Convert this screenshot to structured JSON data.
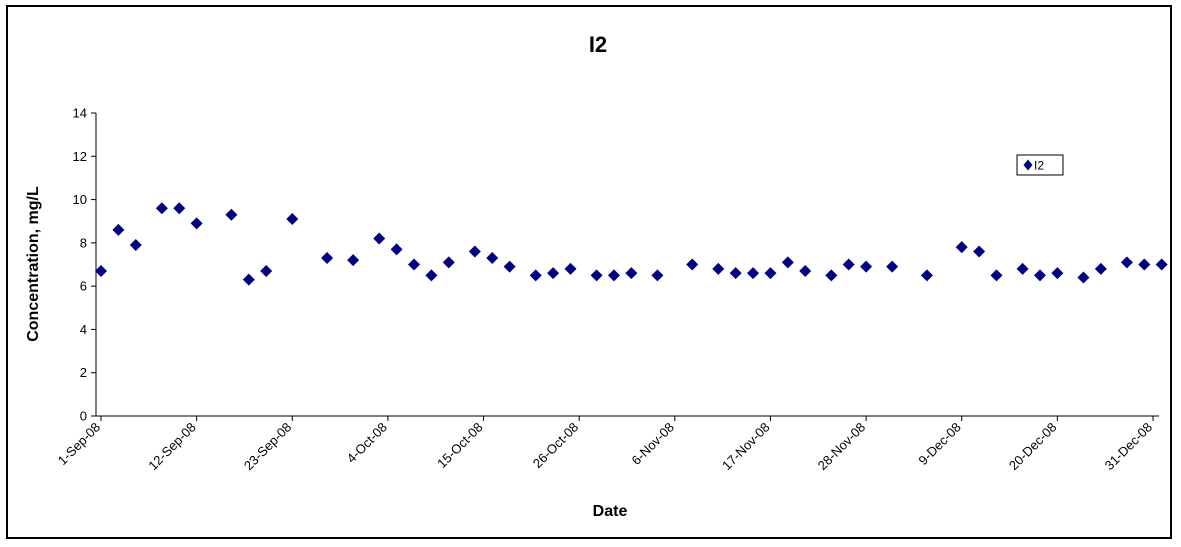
{
  "chart_data": {
    "type": "scatter",
    "title": "I2",
    "xlabel": "Date",
    "ylabel": "Concentration, mg/L",
    "x_axis_type": "date",
    "xlim": [
      "2008-09-01",
      "2008-12-31"
    ],
    "ylim": [
      0,
      14
    ],
    "y_ticks": [
      0,
      2,
      4,
      6,
      8,
      10,
      12,
      14
    ],
    "x_tick_labels": [
      "1-Sep-08",
      "12-Sep-08",
      "23-Sep-08",
      "4-Oct-08",
      "15-Oct-08",
      "26-Oct-08",
      "6-Nov-08",
      "17-Nov-08",
      "28-Nov-08",
      "9-Dec-08",
      "20-Dec-08",
      "31-Dec-08"
    ],
    "x_tick_dates": [
      "2008-09-01",
      "2008-09-12",
      "2008-09-23",
      "2008-10-04",
      "2008-10-15",
      "2008-10-26",
      "2008-11-06",
      "2008-11-17",
      "2008-11-28",
      "2008-12-09",
      "2008-12-20",
      "2008-12-31"
    ],
    "grid": false,
    "legend_position": "top-right",
    "marker": "diamond",
    "series": [
      {
        "name": "I2",
        "color": "#000080",
        "points": [
          [
            "2008-09-01",
            6.7
          ],
          [
            "2008-09-03",
            8.6
          ],
          [
            "2008-09-05",
            7.9
          ],
          [
            "2008-09-08",
            9.6
          ],
          [
            "2008-09-10",
            9.6
          ],
          [
            "2008-09-12",
            8.9
          ],
          [
            "2008-09-16",
            9.3
          ],
          [
            "2008-09-18",
            6.3
          ],
          [
            "2008-09-20",
            6.7
          ],
          [
            "2008-09-23",
            9.1
          ],
          [
            "2008-09-27",
            7.3
          ],
          [
            "2008-09-30",
            7.2
          ],
          [
            "2008-10-03",
            8.2
          ],
          [
            "2008-10-05",
            7.7
          ],
          [
            "2008-10-07",
            7.0
          ],
          [
            "2008-10-09",
            6.5
          ],
          [
            "2008-10-11",
            7.1
          ],
          [
            "2008-10-14",
            7.6
          ],
          [
            "2008-10-16",
            7.3
          ],
          [
            "2008-10-18",
            6.9
          ],
          [
            "2008-10-21",
            6.5
          ],
          [
            "2008-10-23",
            6.6
          ],
          [
            "2008-10-25",
            6.8
          ],
          [
            "2008-10-28",
            6.5
          ],
          [
            "2008-10-30",
            6.5
          ],
          [
            "2008-11-01",
            6.6
          ],
          [
            "2008-11-04",
            6.5
          ],
          [
            "2008-11-08",
            7.0
          ],
          [
            "2008-11-11",
            6.8
          ],
          [
            "2008-11-13",
            6.6
          ],
          [
            "2008-11-15",
            6.6
          ],
          [
            "2008-11-17",
            6.6
          ],
          [
            "2008-11-19",
            7.1
          ],
          [
            "2008-11-21",
            6.7
          ],
          [
            "2008-11-24",
            6.5
          ],
          [
            "2008-11-26",
            7.0
          ],
          [
            "2008-11-28",
            6.9
          ],
          [
            "2008-12-01",
            6.9
          ],
          [
            "2008-12-05",
            6.5
          ],
          [
            "2008-12-09",
            7.8
          ],
          [
            "2008-12-11",
            7.6
          ],
          [
            "2008-12-13",
            6.5
          ],
          [
            "2008-12-16",
            6.8
          ],
          [
            "2008-12-18",
            6.5
          ],
          [
            "2008-12-20",
            6.6
          ],
          [
            "2008-12-23",
            6.4
          ],
          [
            "2008-12-25",
            6.8
          ],
          [
            "2008-12-28",
            7.1
          ],
          [
            "2008-12-30",
            7.0
          ],
          [
            "2009-01-01",
            7.0
          ]
        ]
      }
    ]
  }
}
